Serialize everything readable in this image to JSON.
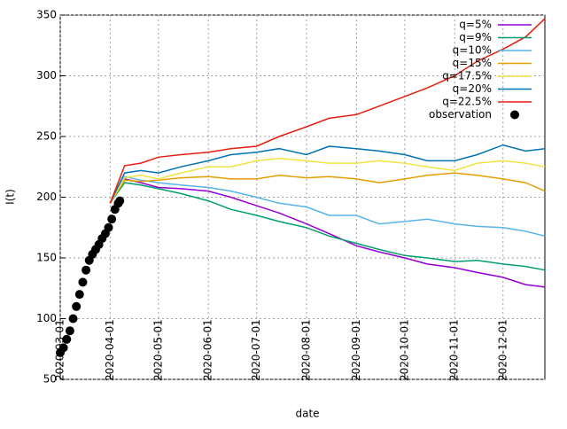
{
  "chart_data": {
    "type": "line",
    "xlabel": "date",
    "ylabel": "I(t)",
    "ylim": [
      50,
      350
    ],
    "yticks": [
      50,
      100,
      150,
      200,
      250,
      300,
      350
    ],
    "xlim": [
      "2020-03-01",
      "2020-12-27"
    ],
    "xticks": [
      "2020-03-01",
      "2020-04-01",
      "2020-05-01",
      "2020-06-01",
      "2020-07-01",
      "2020-08-01",
      "2020-09-01",
      "2020-10-01",
      "2020-11-01",
      "2020-12-01"
    ],
    "grid": true,
    "legend": "top-right",
    "x": [
      "2020-04-01",
      "2020-04-10",
      "2020-04-20",
      "2020-05-01",
      "2020-05-15",
      "2020-06-01",
      "2020-06-15",
      "2020-07-01",
      "2020-07-15",
      "2020-08-01",
      "2020-08-15",
      "2020-09-01",
      "2020-09-15",
      "2020-10-01",
      "2020-10-15",
      "2020-11-01",
      "2020-11-15",
      "2020-12-01",
      "2020-12-15",
      "2020-12-27"
    ],
    "series": [
      {
        "name": "q=5%",
        "color": "#9400d3",
        "values": [
          195,
          215,
          212,
          208,
          207,
          205,
          200,
          193,
          187,
          178,
          170,
          160,
          155,
          150,
          145,
          142,
          138,
          134,
          128,
          126
        ]
      },
      {
        "name": "q=9%",
        "color": "#009e73",
        "values": [
          195,
          212,
          210,
          207,
          203,
          197,
          190,
          185,
          180,
          175,
          168,
          162,
          157,
          152,
          150,
          147,
          148,
          145,
          143,
          140
        ]
      },
      {
        "name": "q=10%",
        "color": "#56b4e9",
        "values": [
          195,
          217,
          214,
          212,
          210,
          208,
          205,
          200,
          195,
          192,
          185,
          185,
          178,
          180,
          182,
          178,
          176,
          175,
          172,
          168
        ]
      },
      {
        "name": "q=15%",
        "color": "#e69f00",
        "values": [
          195,
          214,
          213,
          214,
          216,
          217,
          215,
          215,
          218,
          216,
          217,
          215,
          212,
          215,
          218,
          220,
          218,
          215,
          212,
          205
        ]
      },
      {
        "name": "q=17.5%",
        "color": "#f0e442",
        "values": [
          195,
          216,
          218,
          215,
          220,
          225,
          225,
          230,
          232,
          230,
          228,
          228,
          230,
          228,
          225,
          222,
          228,
          230,
          228,
          225
        ]
      },
      {
        "name": "q=20%",
        "color": "#0072b2",
        "values": [
          195,
          220,
          222,
          220,
          225,
          230,
          235,
          237,
          240,
          235,
          242,
          240,
          238,
          235,
          230,
          230,
          235,
          243,
          238,
          240
        ]
      },
      {
        "name": "q=22.5%",
        "color": "#e51e10",
        "values": [
          195,
          226,
          228,
          233,
          235,
          237,
          240,
          242,
          250,
          258,
          265,
          268,
          275,
          283,
          290,
          300,
          312,
          322,
          332,
          347
        ]
      },
      {
        "name": "observation",
        "color": "#000000",
        "style": "points",
        "x": [
          "2020-03-01",
          "2020-03-03",
          "2020-03-05",
          "2020-03-07",
          "2020-03-09",
          "2020-03-11",
          "2020-03-13",
          "2020-03-15",
          "2020-03-17",
          "2020-03-19",
          "2020-03-21",
          "2020-03-23",
          "2020-03-25",
          "2020-03-27",
          "2020-03-29",
          "2020-03-31",
          "2020-04-02",
          "2020-04-04",
          "2020-04-06",
          "2020-04-07"
        ],
        "values": [
          72,
          76,
          83,
          90,
          100,
          110,
          120,
          130,
          140,
          148,
          153,
          157,
          161,
          166,
          170,
          175,
          182,
          190,
          195,
          197
        ]
      }
    ]
  }
}
